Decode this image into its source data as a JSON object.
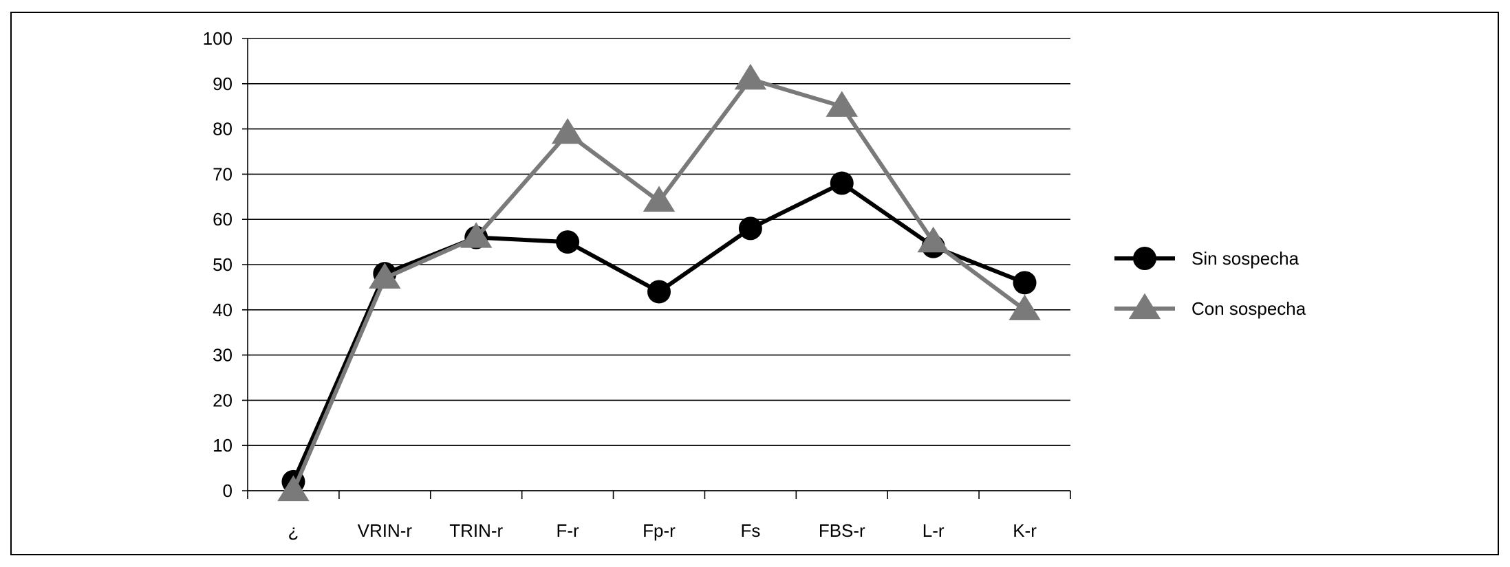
{
  "chart_data": {
    "type": "line",
    "title": "",
    "xlabel": "",
    "ylabel": "",
    "ylim": [
      0,
      100
    ],
    "yticks": [
      "0",
      "10",
      "20",
      "30",
      "40",
      "50",
      "60",
      "70",
      "80",
      "90",
      "100"
    ],
    "categories": [
      "¿",
      "VRIN-r",
      "TRIN-r",
      "F-r",
      "Fp-r",
      "Fs",
      "FBS-r",
      "L-r",
      "K-r"
    ],
    "grid": true,
    "legend_position": "right",
    "series": [
      {
        "name": "Sin sospecha",
        "marker": "circle",
        "color": "#000000",
        "values": [
          2,
          48,
          56,
          55,
          44,
          58,
          68,
          54,
          46
        ]
      },
      {
        "name": "Con sospecha",
        "marker": "triangle",
        "color": "#7a7a7a",
        "values": [
          0,
          47,
          56,
          79,
          64,
          91,
          85,
          55,
          40
        ]
      }
    ]
  }
}
